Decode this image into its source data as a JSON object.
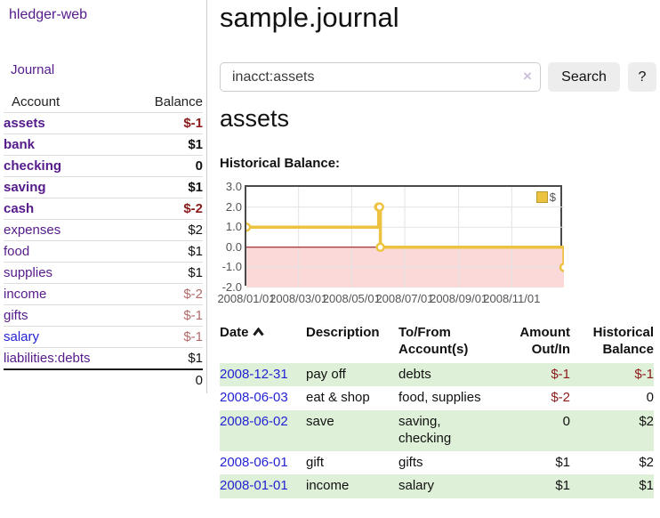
{
  "app": {
    "brand": "hledger-web",
    "nav_journal": "Journal"
  },
  "sidebar": {
    "header": {
      "account": "Account",
      "balance": "Balance"
    },
    "accounts": [
      {
        "label": "assets",
        "balance": "$-1"
      },
      {
        "label": "bank",
        "balance": "$1"
      },
      {
        "label": "checking",
        "balance": "0"
      },
      {
        "label": "saving",
        "balance": "$1"
      },
      {
        "label": "cash",
        "balance": "$-2"
      },
      {
        "label": "expenses",
        "balance": "$2"
      },
      {
        "label": "food",
        "balance": "$1"
      },
      {
        "label": "supplies",
        "balance": "$1"
      },
      {
        "label": "income",
        "balance": "$-2"
      },
      {
        "label": "gifts",
        "balance": "$-1"
      },
      {
        "label": "salary",
        "balance": "$-1"
      },
      {
        "label": "liabilities:debts",
        "balance": "$1"
      }
    ],
    "total": "0"
  },
  "main": {
    "title": "sample.journal",
    "search": {
      "value": "inacct:assets",
      "clear_icon": "×",
      "button_label": "Search",
      "help_label": "?"
    },
    "section_title": "assets",
    "chart_label": "Historical Balance:"
  },
  "chart_data": {
    "type": "line",
    "step": true,
    "title": "Historical Balance",
    "x_start": "2008/01/01",
    "x_end": "2008/12/31",
    "ylim": [
      -2,
      3
    ],
    "yticks": [
      "3.0",
      "2.0",
      "1.0",
      "0.0",
      "-1.0",
      "-2.0"
    ],
    "xticks": [
      "2008/01/01",
      "2008/03/01",
      "2008/05/01",
      "2008/07/01",
      "2008/09/01",
      "2008/11/01"
    ],
    "series": [
      {
        "name": "$",
        "color": "#edc240",
        "points": [
          [
            "2008/01/01",
            1
          ],
          [
            "2008/06/01",
            2
          ],
          [
            "2008/06/02",
            2
          ],
          [
            "2008/06/03",
            0
          ],
          [
            "2008/12/31",
            -1
          ]
        ]
      }
    ],
    "grid": true,
    "legend_position": "top-right",
    "below_zero_fill": "#fbd9d9",
    "zero_line_color": "#8b0000"
  },
  "register": {
    "headers": {
      "date": "Date",
      "description": "Description",
      "tofrom": "To/From Account(s)",
      "amount": "Amount Out/In",
      "balance": "Historical Balance"
    },
    "rows": [
      {
        "date": "2008-12-31",
        "description": "pay off",
        "accounts": "debts",
        "amount": "$-1",
        "balance": "$-1"
      },
      {
        "date": "2008-06-03",
        "description": "eat & shop",
        "accounts": "food, supplies",
        "amount": "$-2",
        "balance": "0"
      },
      {
        "date": "2008-06-02",
        "description": "save",
        "accounts": "saving, checking",
        "amount": "0",
        "balance": "$2"
      },
      {
        "date": "2008-06-01",
        "description": "gift",
        "accounts": "gifts",
        "amount": "$1",
        "balance": "$2"
      },
      {
        "date": "2008-01-01",
        "description": "income",
        "accounts": "salary",
        "amount": "$1",
        "balance": "$1"
      }
    ]
  }
}
